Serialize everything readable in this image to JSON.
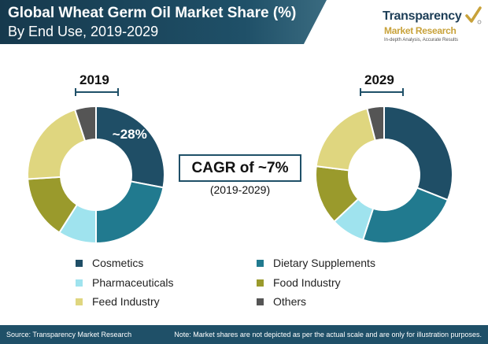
{
  "header": {
    "title_line1": "Global Wheat Germ Oil Market Share (%)",
    "title_line2": "By End Use, 2019-2029"
  },
  "logo": {
    "name": "Transparency",
    "sub": "Market Research",
    "tagline": "In-depth Analysis, Accurate Results"
  },
  "cagr": {
    "label": "CAGR of ~7%",
    "period": "(2019-2029)"
  },
  "footer": {
    "source": "Source: Transparency Market Research",
    "note": "Note: Market shares are not depicted as per the actual scale and are only for illustration purposes."
  },
  "colors": {
    "Cosmetics": "#1f4e66",
    "Dietary Supplements": "#217a8f",
    "Pharmaceuticals": "#9fe3ee",
    "Food Industry": "#9a9a2c",
    "Feed Industry": "#dfd67f",
    "Others": "#555555"
  },
  "chart_data": [
    {
      "type": "pie",
      "donut": true,
      "title": "2019",
      "categories": [
        "Cosmetics",
        "Dietary Supplements",
        "Pharmaceuticals",
        "Food Industry",
        "Feed Industry",
        "Others"
      ],
      "values": [
        28,
        22,
        9,
        15,
        21,
        5
      ],
      "data_labels": [
        "~28%"
      ],
      "legend": "bottom"
    },
    {
      "type": "pie",
      "donut": true,
      "title": "2029",
      "categories": [
        "Cosmetics",
        "Dietary Supplements",
        "Pharmaceuticals",
        "Food Industry",
        "Feed Industry",
        "Others"
      ],
      "values": [
        31,
        24,
        8,
        14,
        19,
        4
      ],
      "legend": "bottom"
    }
  ]
}
